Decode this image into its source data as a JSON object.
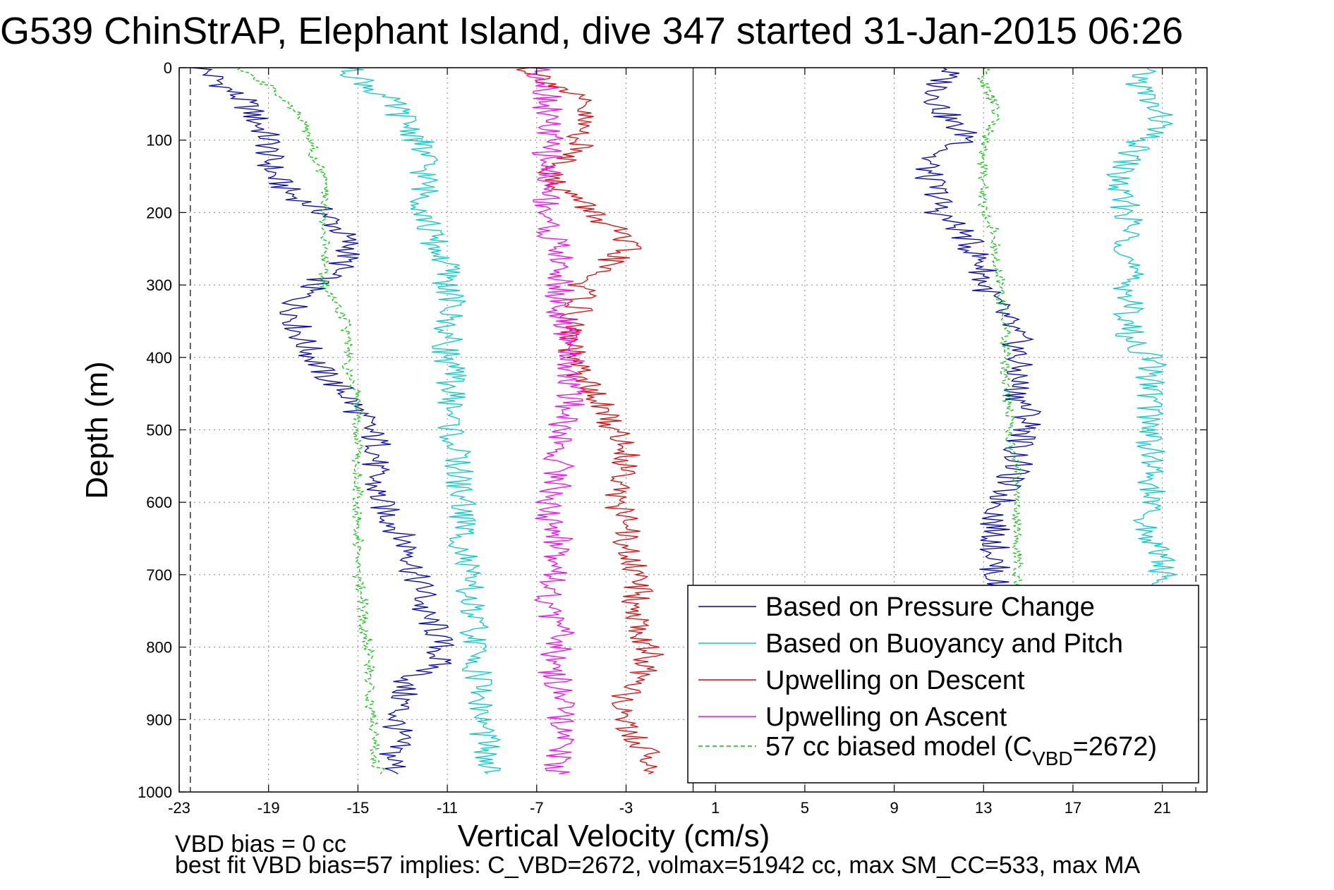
{
  "chart_data": {
    "type": "line",
    "title": "G539 ChinStrAP, Elephant Island, dive 347 started 31-Jan-2015 06:26",
    "xlabel": "Vertical Velocity (cm/s)",
    "ylabel": "Depth (m)",
    "xlim": [
      -23,
      23
    ],
    "ylim": [
      1000,
      0
    ],
    "y_reversed": true,
    "grid": true,
    "legend_position": "bottom-right",
    "x_ticks": [
      "-23",
      "-19",
      "-15",
      "-11",
      "-7",
      "-3",
      "1",
      "5",
      "9",
      "13",
      "17",
      "21"
    ],
    "y_ticks": [
      "0",
      "100",
      "200",
      "300",
      "400",
      "500",
      "600",
      "700",
      "800",
      "900",
      "1000"
    ],
    "vertical_dashed_lines": [
      -22.5,
      22.5
    ],
    "zero_line": 0,
    "depth": [
      0,
      25,
      50,
      75,
      100,
      125,
      150,
      175,
      200,
      225,
      250,
      275,
      300,
      325,
      350,
      375,
      400,
      425,
      450,
      475,
      500,
      525,
      550,
      575,
      600,
      625,
      650,
      675,
      700,
      725,
      750,
      775,
      800,
      825,
      850,
      875,
      900,
      925,
      950,
      975
    ],
    "series": [
      {
        "name": "Based on Pressure Change",
        "color": "#0000cc",
        "style": "solid",
        "descent": [
          -22,
          -21,
          -20,
          -19.5,
          -19,
          -19,
          -18.8,
          -18,
          -16.5,
          -15.8,
          -15.3,
          -15.8,
          -17,
          -17.8,
          -17.8,
          -17.5,
          -17,
          -16.5,
          -15.5,
          -15,
          -14.5,
          -14,
          -14.3,
          -14.3,
          -14,
          -13.5,
          -13,
          -12.5,
          -12.5,
          -12,
          -12.2,
          -11.5,
          -11.3,
          -11.5,
          -13,
          -13,
          -13.3,
          -13.2,
          -13.5,
          -13.2
        ],
        "ascent": [
          11.5,
          11,
          11,
          11.5,
          12.5,
          10.5,
          10.5,
          11,
          11,
          12,
          12.5,
          13,
          13,
          13.5,
          14,
          14.5,
          14.5,
          14.5,
          14.5,
          15,
          15,
          14.5,
          14.5,
          14,
          13.8,
          13.5,
          13.5,
          13.5,
          13.5,
          13.5,
          null,
          null,
          null,
          null,
          null,
          null,
          null,
          null,
          null,
          null
        ]
      },
      {
        "name": "Based on Buoyancy and Pitch",
        "color": "#00cccc",
        "style": "solid",
        "descent": [
          -15.5,
          -14.5,
          -13.5,
          -12.8,
          -12.3,
          -12,
          -12,
          -12,
          -12,
          -11.8,
          -11.5,
          -11,
          -11,
          -10.8,
          -11,
          -11,
          -11,
          -10.8,
          -10.8,
          -10.8,
          -10.8,
          -10.7,
          -10.5,
          -10.5,
          -10.3,
          -10.3,
          -10.3,
          -10.2,
          -10.2,
          -10,
          -10,
          -9.8,
          -9.8,
          -9.7,
          -9.5,
          -9.5,
          -9.5,
          -9.3,
          -9.3,
          -9.2
        ],
        "ascent": [
          20,
          20,
          20.5,
          21,
          20,
          19.5,
          19,
          19,
          19.5,
          19.5,
          19.5,
          19.5,
          19.5,
          19.5,
          19.5,
          19.5,
          20.5,
          20.5,
          20.5,
          20.5,
          20.5,
          20.5,
          20.5,
          20.5,
          20.5,
          20,
          20.5,
          21,
          21,
          21,
          null,
          null,
          null,
          null,
          null,
          null,
          null,
          null,
          null,
          null
        ]
      },
      {
        "name": "Upwelling on Descent",
        "color": "#ee0000",
        "style": "solid",
        "descent": [
          -7.5,
          -6,
          -5,
          -5,
          -5,
          -5.5,
          -6.5,
          -5.5,
          -4.5,
          -3.5,
          -3,
          -4,
          -5,
          -5,
          -5.5,
          -5.5,
          -5.5,
          -5,
          -4.5,
          -4,
          -3.5,
          -3,
          -3,
          -3,
          -3.5,
          -3,
          -3,
          -3,
          -2.5,
          -2.5,
          -2.5,
          -2.5,
          -2,
          -2,
          -3,
          -3,
          -3.5,
          -2.5,
          -2,
          -2
        ],
        "ascent": null
      },
      {
        "name": "Upwelling on Ascent",
        "color": "#ff00ff",
        "style": "solid",
        "descent": [
          -7,
          -6.5,
          -6.5,
          -6.5,
          -6.5,
          -6.5,
          -6.5,
          -6.5,
          -6.5,
          -6.5,
          -6,
          -6,
          -6,
          -6,
          -6,
          -5.5,
          -5.5,
          -5.5,
          -5.5,
          -5.5,
          -6,
          -6,
          -6,
          -6,
          -6.5,
          -6.5,
          -6,
          -6,
          -6,
          -6.5,
          -6.5,
          -6,
          -6,
          -6.5,
          -6,
          -6,
          -6,
          -6,
          -6,
          -6
        ],
        "ascent": null
      },
      {
        "name": "57 cc biased model (C_VBD=2672)",
        "color": "#00cc00",
        "style": "dashed",
        "descent": [
          -20.5,
          -19,
          -18,
          -17.5,
          -17,
          -17,
          -16.5,
          -16.5,
          -16.5,
          -16.5,
          -16.5,
          -16.5,
          -16.5,
          -16,
          -15.5,
          -15.5,
          -15.5,
          -15.5,
          -15,
          -15,
          -15,
          -15,
          -15,
          -15,
          -15,
          -15,
          -15,
          -15,
          -15,
          -14.8,
          -14.8,
          -14.7,
          -14.5,
          -14.5,
          -14.5,
          -14.5,
          -14.3,
          -14.3,
          -14.3,
          -14
        ],
        "ascent": [
          13,
          13,
          13.5,
          13.5,
          13,
          13,
          13,
          13,
          13,
          13.5,
          13.5,
          13.5,
          13.8,
          13.8,
          14,
          14,
          14,
          14,
          14,
          14.2,
          14.2,
          14.2,
          14.5,
          14.5,
          14.5,
          14.5,
          14.5,
          14.5,
          14.5,
          14.5,
          null,
          null,
          null,
          null,
          null,
          null,
          null,
          null,
          null,
          null
        ]
      }
    ],
    "legend_entries": [
      {
        "text": "Based on Pressure Change",
        "color": "#0000cc",
        "dashed": false
      },
      {
        "text": "Based on Buoyancy and Pitch",
        "color": "#00cccc",
        "dashed": false
      },
      {
        "text": "Upwelling on Descent",
        "color": "#ee0000",
        "dashed": false
      },
      {
        "text": "Upwelling on Ascent",
        "color": "#ff00ff",
        "dashed": false
      },
      {
        "text": "57 cc biased model (C",
        "sub": "VBD",
        "tail": "=2672)",
        "color": "#00cc00",
        "dashed": true
      }
    ],
    "annotations": [
      "VBD bias = 0 cc",
      "best fit VBD bias=57 implies: C_VBD=2672, volmax=51942 cc, max SM_CC=533, max MA"
    ]
  }
}
